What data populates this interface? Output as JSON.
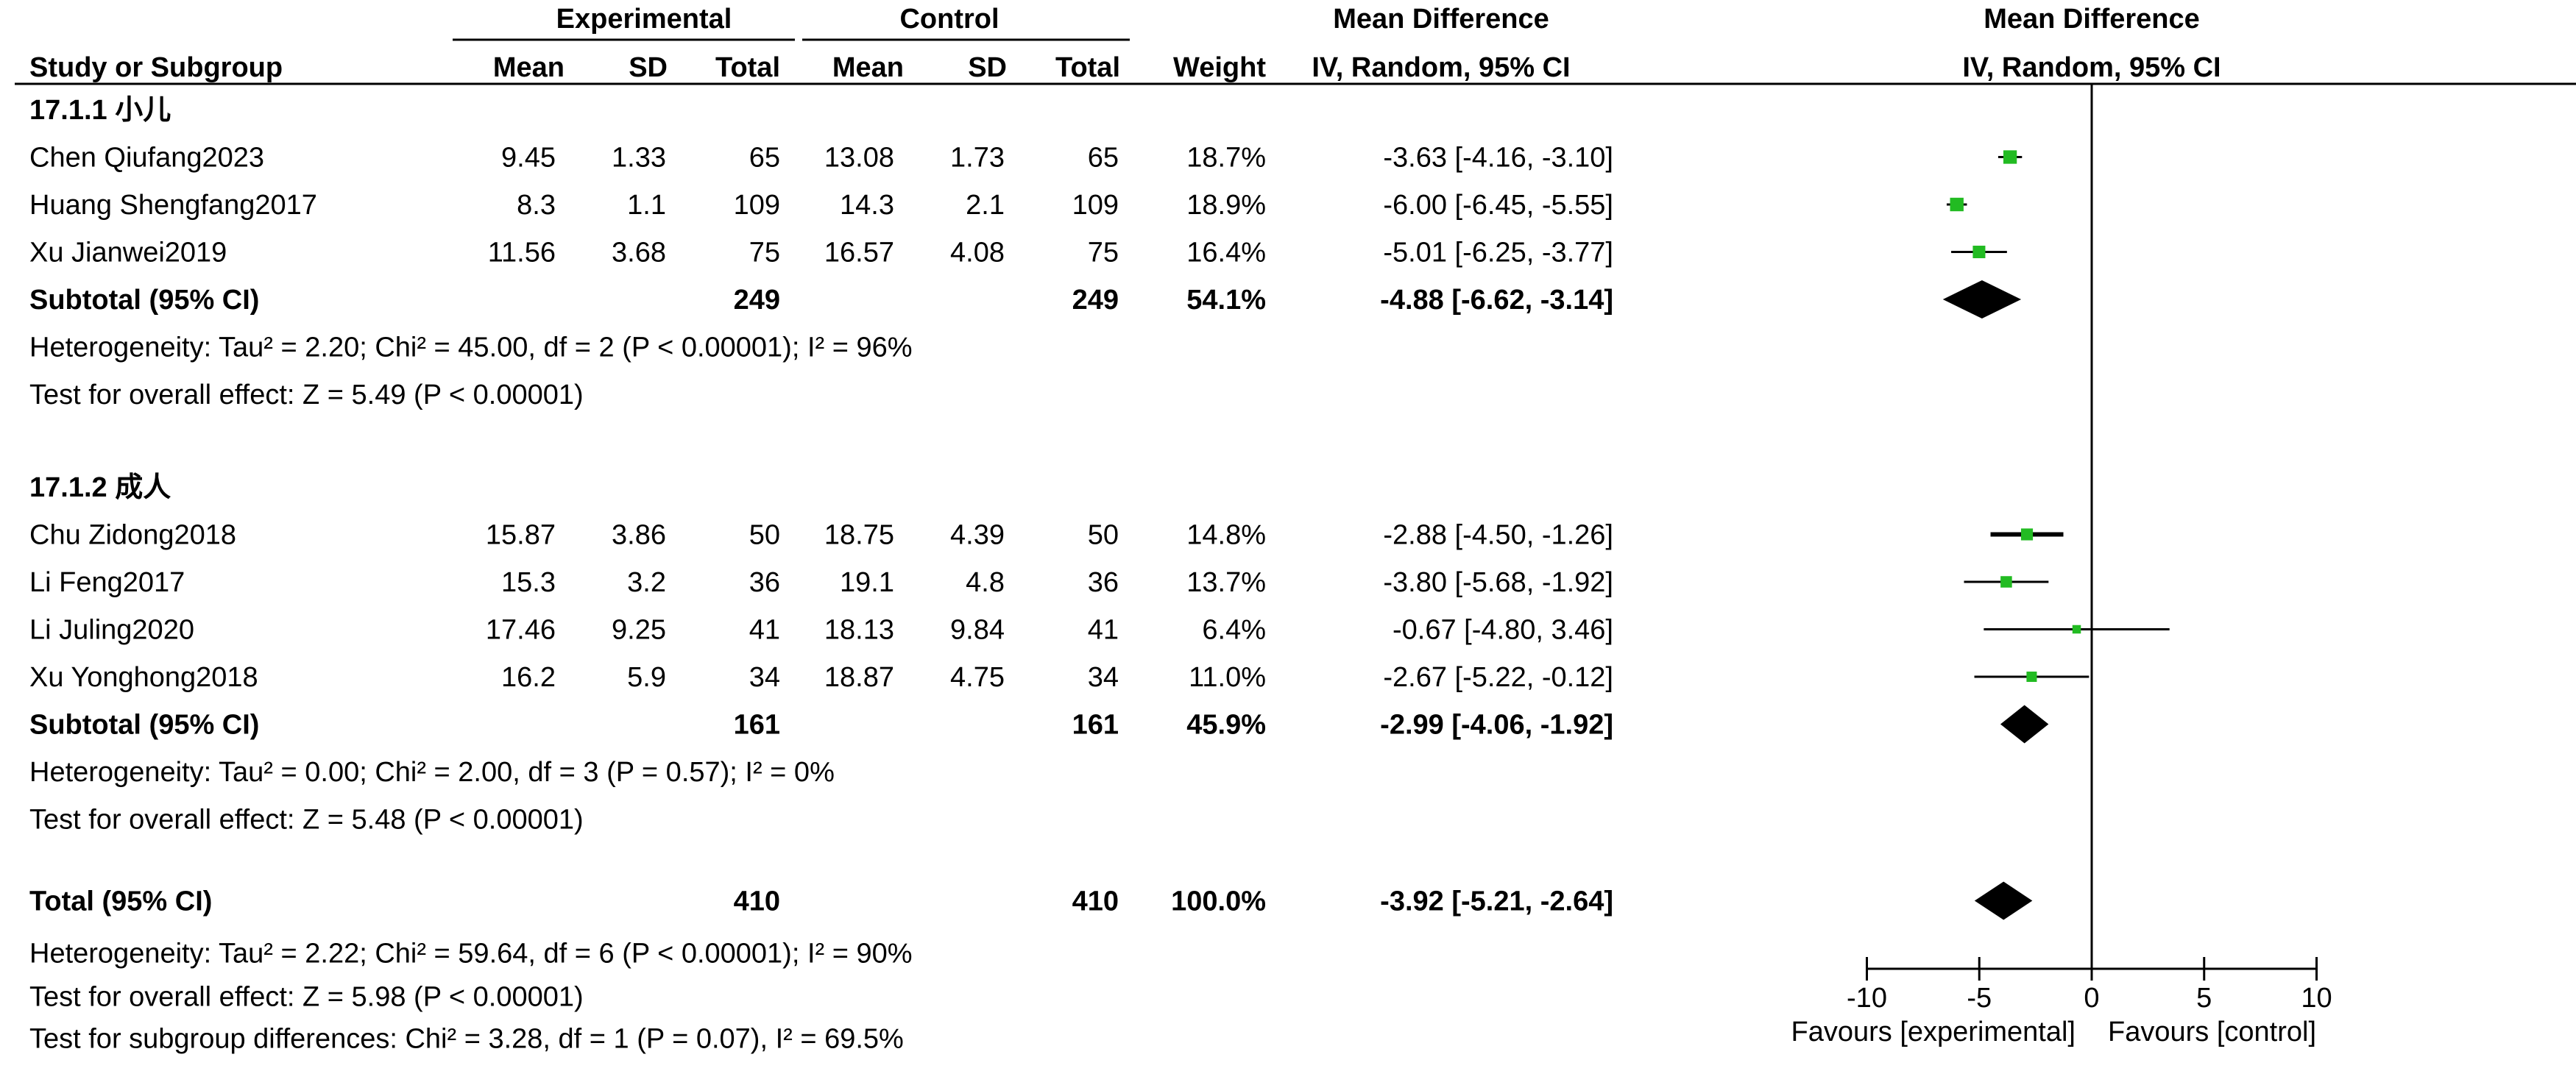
{
  "header": {
    "group_experimental": "Experimental",
    "group_control": "Control",
    "effect_measure": "Mean Difference",
    "plot_measure": "Mean Difference",
    "col_study": "Study or Subgroup",
    "col_exp_mean": "Mean",
    "col_exp_sd": "SD",
    "col_exp_total": "Total",
    "col_ctl_mean": "Mean",
    "col_ctl_sd": "SD",
    "col_ctl_total": "Total",
    "col_weight": "Weight",
    "col_ci": "IV, Random, 95% CI",
    "plot_ci": "IV, Random, 95% CI"
  },
  "chart_data": {
    "type": "forest",
    "xlim": [
      -10,
      10
    ],
    "xticks": [
      "-10",
      "-5",
      "0",
      "5",
      "10"
    ],
    "favours_left": "Favours [experimental]",
    "favours_right": "Favours [control]",
    "subgroups": [
      {
        "title": "17.1.1 小儿",
        "studies": [
          {
            "name": "Chen Qiufang2023",
            "exp_mean": "9.45",
            "exp_sd": "1.33",
            "exp_total": "65",
            "ctl_mean": "13.08",
            "ctl_sd": "1.73",
            "ctl_total": "65",
            "weight": "18.7%",
            "ci_text": "-3.63 [-4.16, -3.10]",
            "md": -3.63,
            "lo": -4.16,
            "hi": -3.1,
            "w": 18.7
          },
          {
            "name": "Huang Shengfang2017",
            "exp_mean": "8.3",
            "exp_sd": "1.1",
            "exp_total": "109",
            "ctl_mean": "14.3",
            "ctl_sd": "2.1",
            "ctl_total": "109",
            "weight": "18.9%",
            "ci_text": "-6.00 [-6.45, -5.55]",
            "md": -6.0,
            "lo": -6.45,
            "hi": -5.55,
            "w": 18.9
          },
          {
            "name": "Xu Jianwei2019",
            "exp_mean": "11.56",
            "exp_sd": "3.68",
            "exp_total": "75",
            "ctl_mean": "16.57",
            "ctl_sd": "4.08",
            "ctl_total": "75",
            "weight": "16.4%",
            "ci_text": "-5.01 [-6.25, -3.77]",
            "md": -5.01,
            "lo": -6.25,
            "hi": -3.77,
            "w": 16.4
          }
        ],
        "subtotal": {
          "label": "Subtotal (95% CI)",
          "exp_total": "249",
          "ctl_total": "249",
          "weight": "54.1%",
          "ci_text": "-4.88 [-6.62, -3.14]",
          "md": -4.88,
          "lo": -6.62,
          "hi": -3.14
        },
        "heterogeneity": "Heterogeneity: Tau² = 2.20; Chi² = 45.00, df = 2 (P < 0.00001); I² = 96%",
        "overall_effect": "Test for overall effect: Z = 5.49 (P < 0.00001)"
      },
      {
        "title": "17.1.2 成人",
        "studies": [
          {
            "name": "Chu Zidong2018",
            "exp_mean": "15.87",
            "exp_sd": "3.86",
            "exp_total": "50",
            "ctl_mean": "18.75",
            "ctl_sd": "4.39",
            "ctl_total": "50",
            "weight": "14.8%",
            "ci_text": "-2.88 [-4.50, -1.26]",
            "md": -2.88,
            "lo": -4.5,
            "hi": -1.26,
            "w": 14.8
          },
          {
            "name": "Li Feng2017",
            "exp_mean": "15.3",
            "exp_sd": "3.2",
            "exp_total": "36",
            "ctl_mean": "19.1",
            "ctl_sd": "4.8",
            "ctl_total": "36",
            "weight": "13.7%",
            "ci_text": "-3.80 [-5.68, -1.92]",
            "md": -3.8,
            "lo": -5.68,
            "hi": -1.92,
            "w": 13.7
          },
          {
            "name": "Li Juling2020",
            "exp_mean": "17.46",
            "exp_sd": "9.25",
            "exp_total": "41",
            "ctl_mean": "18.13",
            "ctl_sd": "9.84",
            "ctl_total": "41",
            "weight": "6.4%",
            "ci_text": "-0.67 [-4.80, 3.46]",
            "md": -0.67,
            "lo": -4.8,
            "hi": 3.46,
            "w": 6.4
          },
          {
            "name": "Xu Yonghong2018",
            "exp_mean": "16.2",
            "exp_sd": "5.9",
            "exp_total": "34",
            "ctl_mean": "18.87",
            "ctl_sd": "4.75",
            "ctl_total": "34",
            "weight": "11.0%",
            "ci_text": "-2.67 [-5.22, -0.12]",
            "md": -2.67,
            "lo": -5.22,
            "hi": -0.12,
            "w": 11.0
          }
        ],
        "subtotal": {
          "label": "Subtotal (95% CI)",
          "exp_total": "161",
          "ctl_total": "161",
          "weight": "45.9%",
          "ci_text": "-2.99 [-4.06, -1.92]",
          "md": -2.99,
          "lo": -4.06,
          "hi": -1.92
        },
        "heterogeneity": "Heterogeneity: Tau² = 0.00; Chi² = 2.00, df = 3 (P = 0.57); I² = 0%",
        "overall_effect": "Test for overall effect: Z = 5.48 (P < 0.00001)"
      }
    ],
    "total": {
      "label": "Total (95% CI)",
      "exp_total": "410",
      "ctl_total": "410",
      "weight": "100.0%",
      "ci_text": "-3.92 [-5.21, -2.64]",
      "md": -3.92,
      "lo": -5.21,
      "hi": -2.64
    },
    "total_heterogeneity": "Heterogeneity: Tau² = 2.22; Chi² = 59.64, df = 6 (P < 0.00001); I² = 90%",
    "total_overall_effect": "Test for overall effect: Z = 5.98 (P < 0.00001)",
    "subgroup_differences": "Test for subgroup differences: Chi² = 3.28, df = 1 (P = 0.07), I² = 69.5%",
    "colors": {
      "study_marker": "#22bb22",
      "diamond": "#000000",
      "line": "#000000"
    }
  }
}
